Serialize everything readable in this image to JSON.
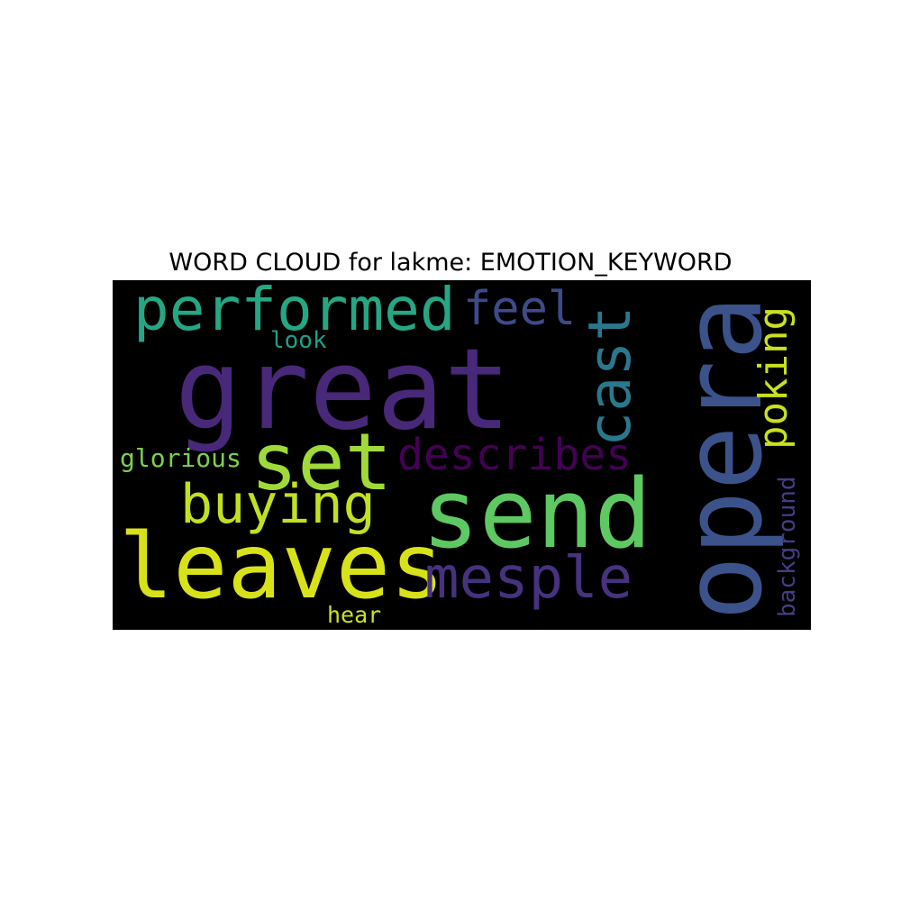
{
  "chart_data": {
    "type": "wordcloud",
    "title": "WORD CLOUD for lakme: EMOTION_KEYWORD",
    "background": "#000000",
    "words": [
      {
        "text": "great",
        "color": "#482878",
        "orientation": "horizontal"
      },
      {
        "text": "opera",
        "color": "#3b528b",
        "orientation": "vertical"
      },
      {
        "text": "send",
        "color": "#5ec962",
        "orientation": "horizontal"
      },
      {
        "text": "leaves",
        "color": "#d8e219",
        "orientation": "horizontal"
      },
      {
        "text": "set",
        "color": "#a0da39",
        "orientation": "horizontal"
      },
      {
        "text": "performed",
        "color": "#25a784",
        "orientation": "horizontal"
      },
      {
        "text": "mesple",
        "color": "#46327e",
        "orientation": "horizontal"
      },
      {
        "text": "cast",
        "color": "#2a788e",
        "orientation": "vertical"
      },
      {
        "text": "buying",
        "color": "#c2df23",
        "orientation": "horizontal"
      },
      {
        "text": "describes",
        "color": "#440154",
        "orientation": "horizontal"
      },
      {
        "text": "poking",
        "color": "#c8e020",
        "orientation": "vertical"
      },
      {
        "text": "feel",
        "color": "#3e4a89",
        "orientation": "horizontal"
      },
      {
        "text": "glorious",
        "color": "#7ad151",
        "orientation": "horizontal"
      },
      {
        "text": "background",
        "color": "#433e85",
        "orientation": "vertical"
      },
      {
        "text": "look",
        "color": "#1f9e89",
        "orientation": "horizontal"
      },
      {
        "text": "hear",
        "color": "#cde11d",
        "orientation": "horizontal"
      }
    ]
  }
}
